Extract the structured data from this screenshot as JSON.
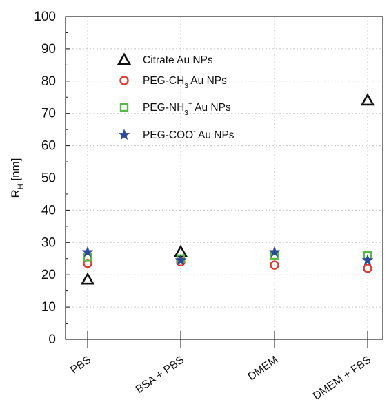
{
  "chart_data": {
    "type": "scatter",
    "categories": [
      "PBS",
      "BSA + PBS",
      "DMEM",
      "DMEM + FBS"
    ],
    "ylabel": {
      "main": "R",
      "sub": "H",
      "unit": " [nm]"
    },
    "ylim": [
      0,
      100
    ],
    "yticks": [
      0,
      10,
      20,
      30,
      40,
      50,
      60,
      70,
      80,
      90,
      100
    ],
    "grid": true,
    "legend_position": "upper-left",
    "series": [
      {
        "name": "Citrate Au NPs",
        "name_parts": [
          [
            "Citrate Au NPs",
            ""
          ]
        ],
        "marker": "triangle",
        "color": "#111111",
        "values": [
          18.5,
          27,
          null,
          74
        ]
      },
      {
        "name": "PEG-CH3 Au NPs",
        "name_parts": [
          [
            "PEG-CH",
            ""
          ],
          [
            "3",
            "sub"
          ],
          [
            " Au NPs",
            ""
          ]
        ],
        "marker": "circle",
        "color": "#e03a2f",
        "values": [
          23.5,
          24,
          23,
          22
        ]
      },
      {
        "name": "PEG-NH3+ Au NPs",
        "name_parts": [
          [
            "PEG-NH",
            ""
          ],
          [
            "3",
            "sub"
          ],
          [
            "+",
            "sup"
          ],
          [
            " Au NPs",
            ""
          ]
        ],
        "marker": "square",
        "color": "#58b847",
        "values": [
          25.5,
          25,
          26,
          26
        ]
      },
      {
        "name": "PEG-COO- Au NPs",
        "name_parts": [
          [
            "PEG-COO",
            ""
          ],
          [
            "-",
            "sup"
          ],
          [
            " Au NPs",
            ""
          ]
        ],
        "marker": "star",
        "color": "#2b4a9a",
        "values": [
          27,
          24.5,
          27,
          24.5
        ]
      }
    ]
  }
}
